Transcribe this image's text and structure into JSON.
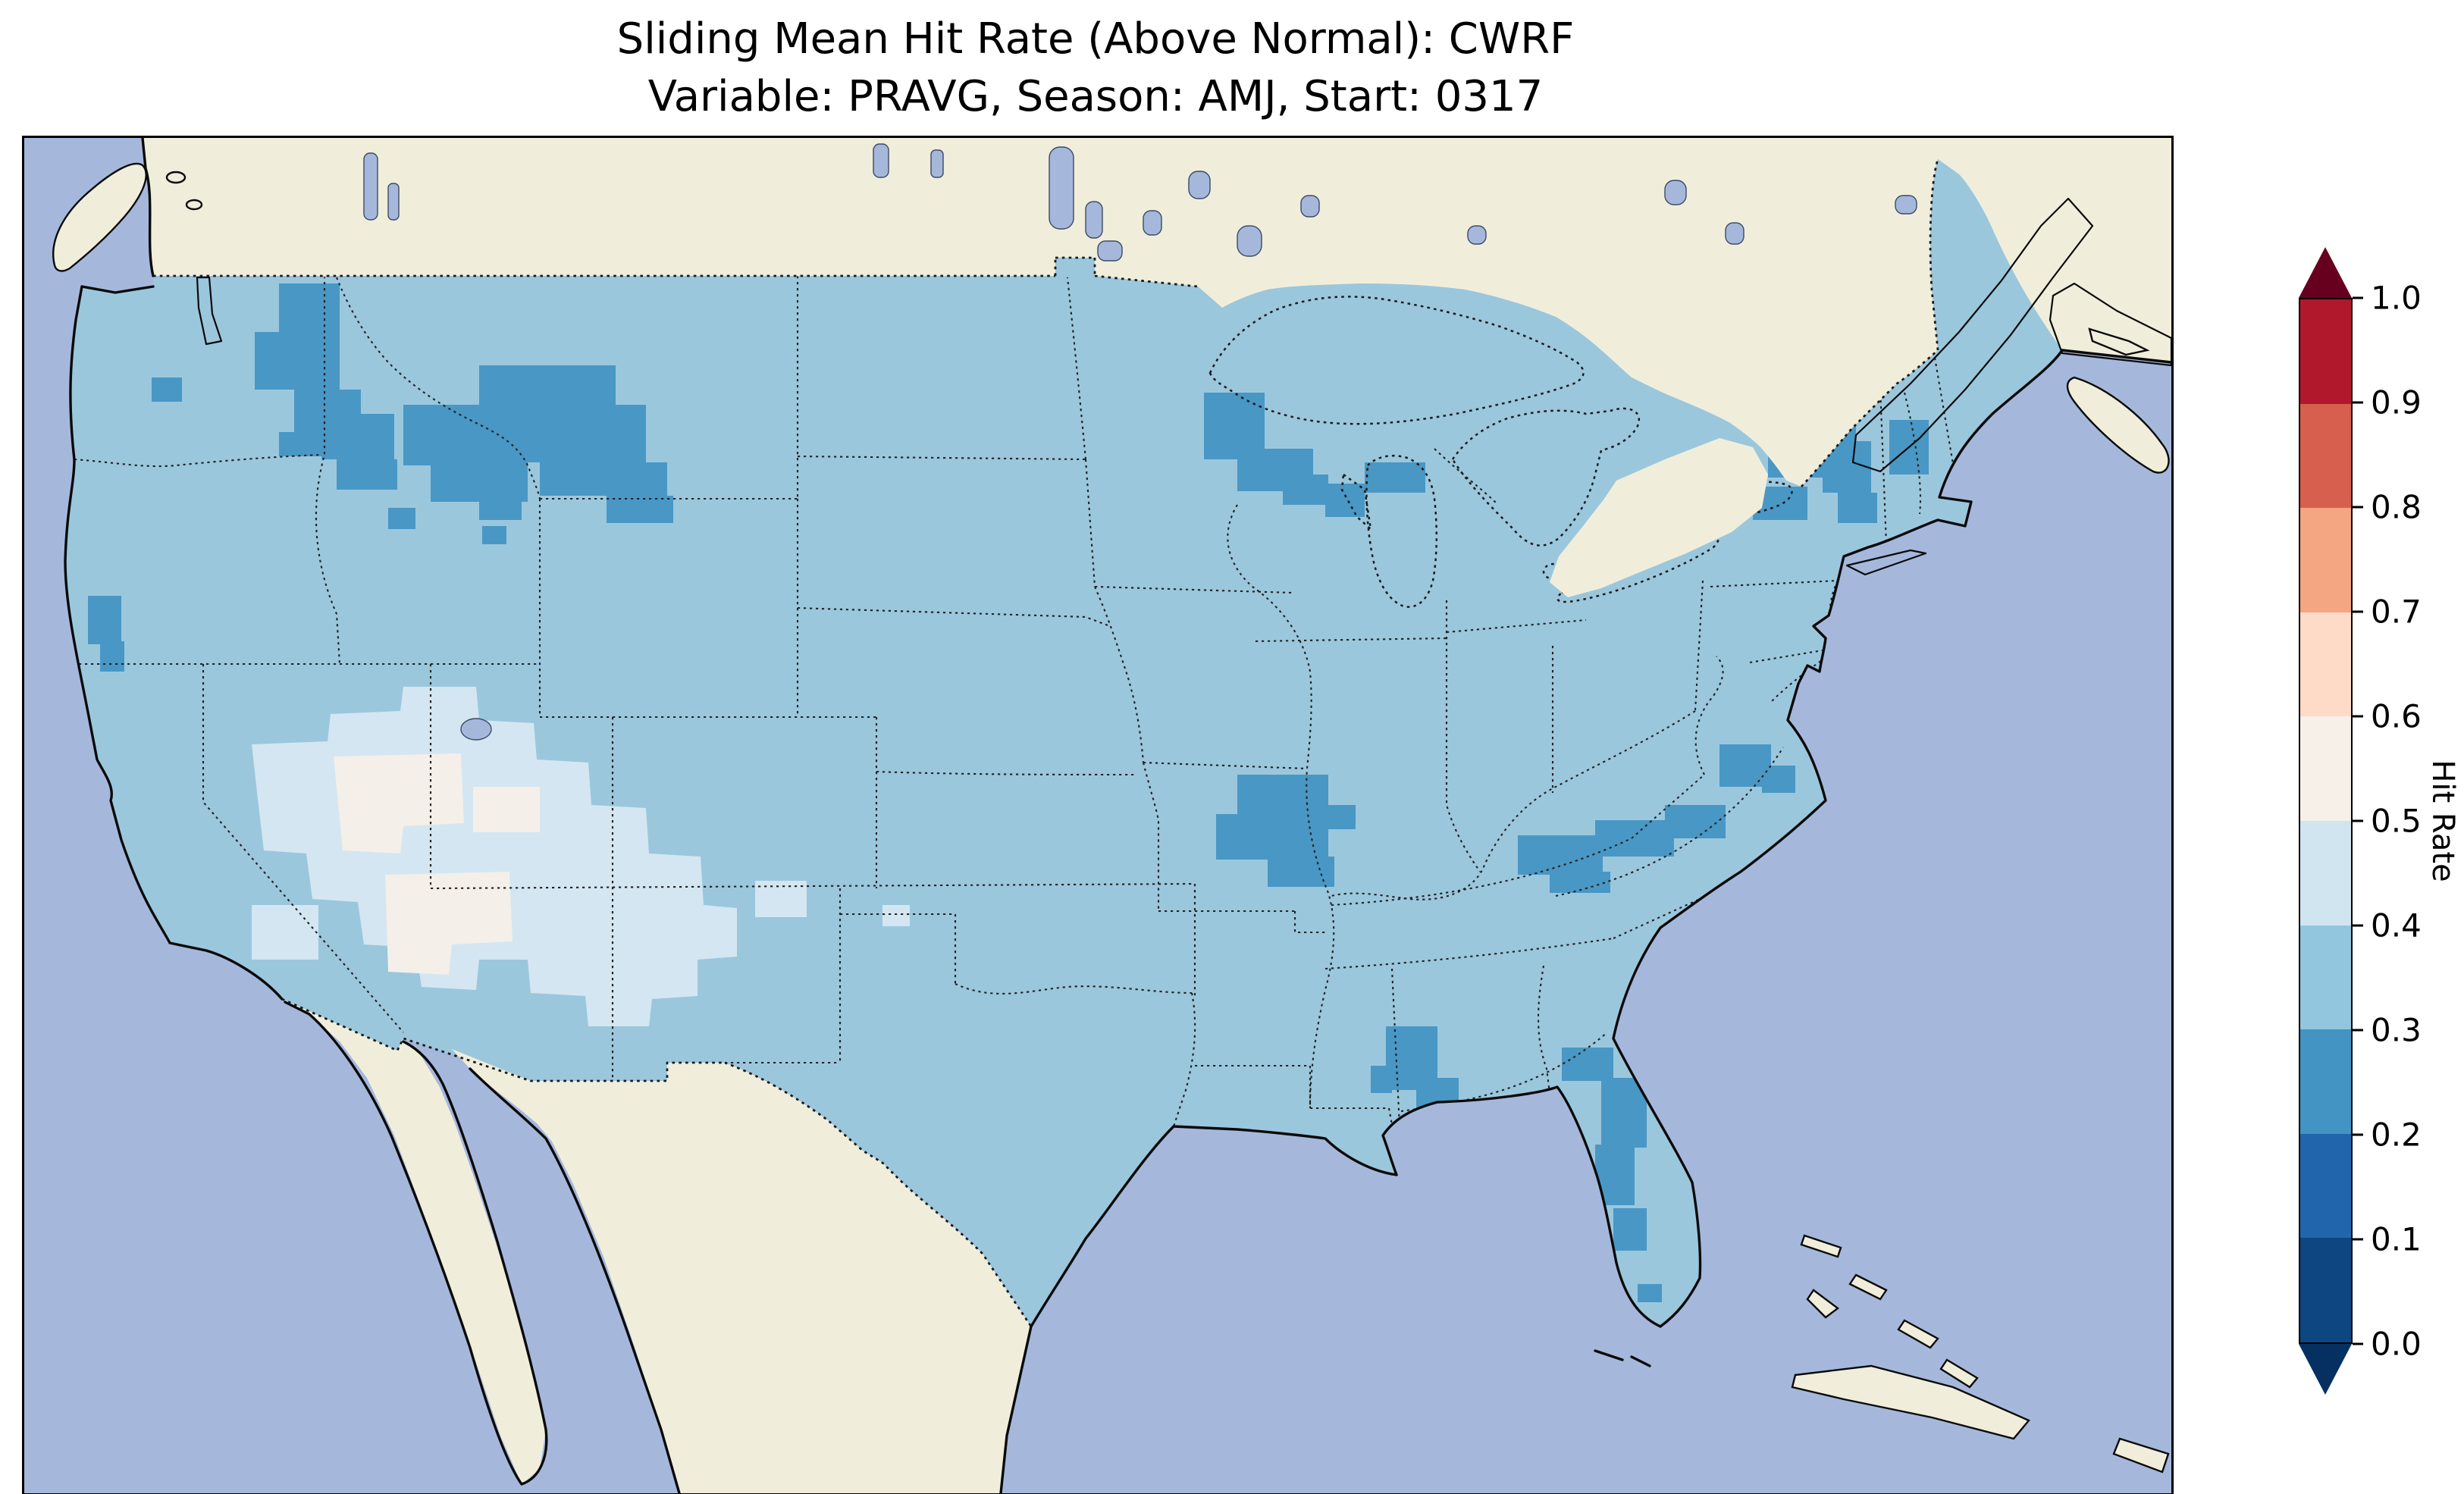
{
  "title": {
    "line1": "Sliding Mean Hit Rate (Above Normal): CWRF",
    "line2": "Variable: PRAVG, Season: AMJ, Start: 0317"
  },
  "colorbar": {
    "label": "Hit Rate",
    "ticks": [
      "0.0",
      "0.1",
      "0.2",
      "0.3",
      "0.4",
      "0.5",
      "0.6",
      "0.7",
      "0.8",
      "0.9",
      "1.0"
    ],
    "segments": [
      {
        "range": "0.0-0.1",
        "color": "#0d4680"
      },
      {
        "range": "0.1-0.2",
        "color": "#2166ac"
      },
      {
        "range": "0.2-0.3",
        "color": "#4393c3"
      },
      {
        "range": "0.3-0.4",
        "color": "#92c5de"
      },
      {
        "range": "0.4-0.5",
        "color": "#d1e5f0"
      },
      {
        "range": "0.5-0.6",
        "color": "#f7f0e9"
      },
      {
        "range": "0.6-0.7",
        "color": "#fddbc7"
      },
      {
        "range": "0.7-0.8",
        "color": "#f4a582"
      },
      {
        "range": "0.8-0.9",
        "color": "#d6604d"
      },
      {
        "range": "0.9-1.0",
        "color": "#b2182b"
      }
    ],
    "under_color": "#053061",
    "over_color": "#67001f"
  },
  "map": {
    "colors": {
      "ocean": "#a5b8dc",
      "land": "#f0eedb",
      "us_base": "#9bc7dd",
      "bin_02_03": "#4997c5",
      "bin_04_05": "#d4e6f1",
      "bin_05_06": "#f4efe9"
    }
  },
  "chart_data": {
    "type": "heatmap",
    "title": "Sliding Mean Hit Rate (Above Normal): CWRF",
    "subtitle": "Variable: PRAVG, Season: AMJ, Start: 0317",
    "model": "CWRF",
    "variable": "PRAVG",
    "season": "AMJ",
    "start": "0317",
    "metric": "Hit Rate (Above Normal)",
    "colorbar_label": "Hit Rate",
    "colorbar_range": [
      0.0,
      1.0
    ],
    "colorbar_tick_step": 0.1,
    "colormap": "RdBu_r (dark blue = 0.0, dark red = 1.0, extended arrows both ends)",
    "domain": "Contiguous United States (gridded ~0.5 deg cells), neighbors shown as plain land",
    "observations": [
      {
        "region": "Most of CONUS (default)",
        "hit_rate_bin": "0.3-0.4"
      },
      {
        "region": "Great Basin / Southwest (Nevada, Utah, Arizona, W New Mexico)",
        "hit_rate_bin": "0.4-0.5"
      },
      {
        "region": "Central Nevada and NW Arizona cores",
        "hit_rate_bin": "0.5-0.6"
      },
      {
        "region": "Washington Cascades / Puget region",
        "hit_rate_bin": "0.2-0.3"
      },
      {
        "region": "Northern Idaho / Western Montana",
        "hit_rate_bin": "0.2-0.3"
      },
      {
        "region": "NE Oregon",
        "hit_rate_bin": "0.2-0.3"
      },
      {
        "region": "Coastal Northern California",
        "hit_rate_bin": "0.2-0.3"
      },
      {
        "region": "NE Minnesota / N Wisconsin / Michigan UP",
        "hit_rate_bin": "0.2-0.3"
      },
      {
        "region": "Upstate New York / N Vermont / N New Hampshire",
        "hit_rate_bin": "0.2-0.3"
      },
      {
        "region": "E Missouri / SW Illinois",
        "hit_rate_bin": "0.2-0.3"
      },
      {
        "region": "E Tennessee / W North Carolina band",
        "hit_rate_bin": "0.2-0.3"
      },
      {
        "region": "SE Virginia / NE North Carolina",
        "hit_rate_bin": "0.2-0.3"
      },
      {
        "region": "E Mississippi / W Alabama",
        "hit_rate_bin": "0.2-0.3"
      },
      {
        "region": "S Georgia and central Florida peninsula",
        "hit_rate_bin": "0.2-0.3"
      },
      {
        "region": "Small spot S Kansas / N Oklahoma",
        "hit_rate_bin": "0.4-0.5"
      }
    ]
  }
}
